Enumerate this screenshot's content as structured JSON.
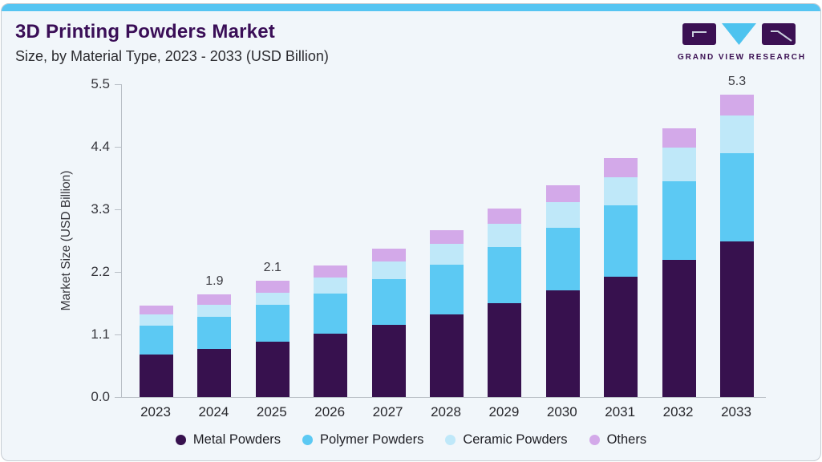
{
  "header": {
    "title": "3D Printing Powders Market",
    "subtitle": "Size, by Material Type, 2023 - 2033 (USD Billion)"
  },
  "logo": {
    "brand": "GRAND VIEW RESEARCH",
    "mark_purple": "#3b1053",
    "mark_cyan": "#4ec3ef"
  },
  "colors": {
    "card_background": "#f1f6fa",
    "top_accent": "#56c5f2",
    "card_border": "#c6ccd2",
    "title_text": "#3a0e57",
    "axis_line": "#b9bfc6",
    "axis_text": "#36363c"
  },
  "chart_data": {
    "type": "bar",
    "stacked": true,
    "title": "3D Printing Powders Market Size, by Material Type, 2023 - 2033 (USD Billion)",
    "ylabel": "Market Size (USD Billion)",
    "xlabel": "",
    "ylim": [
      0,
      5.5
    ],
    "yticks": [
      "0.0",
      "1.1",
      "2.2",
      "3.3",
      "4.4",
      "5.5"
    ],
    "grid": false,
    "legend_position": "bottom",
    "categories": [
      "2023",
      "2024",
      "2025",
      "2026",
      "2027",
      "2028",
      "2029",
      "2030",
      "2031",
      "2032",
      "2033"
    ],
    "series": [
      {
        "name": "Metal Powders",
        "color": "#37114e",
        "values": [
          0.75,
          0.85,
          0.98,
          1.12,
          1.27,
          1.45,
          1.65,
          1.87,
          2.12,
          2.41,
          2.74
        ]
      },
      {
        "name": "Polymer Powders",
        "color": "#5cc9f3",
        "values": [
          0.5,
          0.56,
          0.64,
          0.7,
          0.8,
          0.88,
          0.99,
          1.1,
          1.25,
          1.39,
          1.55
        ]
      },
      {
        "name": "Ceramic Powders",
        "color": "#bfe8f9",
        "values": [
          0.2,
          0.21,
          0.22,
          0.28,
          0.31,
          0.36,
          0.41,
          0.46,
          0.5,
          0.59,
          0.66
        ]
      },
      {
        "name": "Others",
        "color": "#d3a9e9",
        "values": [
          0.16,
          0.18,
          0.21,
          0.21,
          0.23,
          0.24,
          0.26,
          0.29,
          0.33,
          0.34,
          0.37
        ]
      }
    ],
    "bar_labels": [
      "",
      "1.9",
      "2.1",
      "",
      "",
      "",
      "",
      "",
      "",
      "",
      "5.3"
    ]
  }
}
